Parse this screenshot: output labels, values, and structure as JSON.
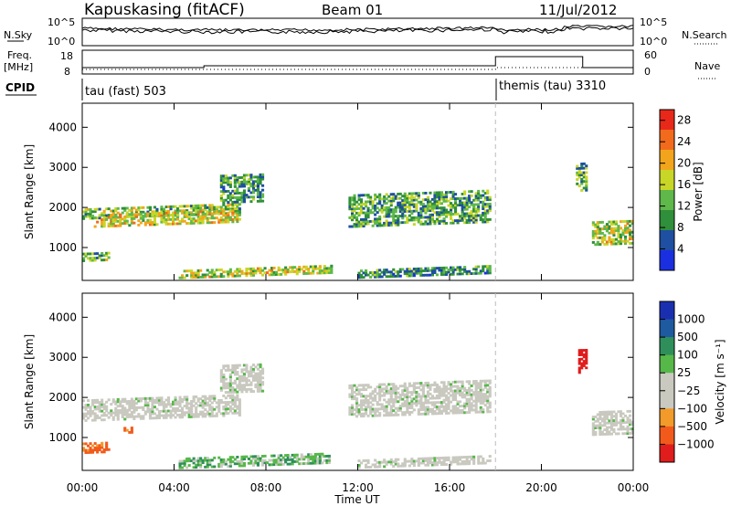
{
  "header": {
    "station": "Kapuskasing (fitACF)",
    "beam": "Beam 01",
    "date": "11/Jul/2012"
  },
  "top_panels": {
    "nsky_label": "N.Sky",
    "nsky_ticks": [
      "10^5",
      "10^0"
    ],
    "nsearch_label": "N.Search",
    "nsearch_ticks": [
      "10^5",
      "10^0"
    ],
    "freq_label": "Freq.",
    "freq_unit": "[MHz]",
    "freq_ticks": [
      "18",
      "8"
    ],
    "nave_label": "Nave",
    "nave_ticks": [
      "60",
      "0"
    ],
    "cpid_label": "CPID",
    "cpid_segments": [
      {
        "start_hour": 0,
        "text": "tau (fast) 503"
      },
      {
        "start_hour": 18,
        "text": "themis (tau) 3310"
      }
    ]
  },
  "colors": {
    "power": [
      "#1a2fe0",
      "#1e4fa0",
      "#2f8f3a",
      "#5fb84a",
      "#c8d628",
      "#f2a51c",
      "#f26a1c",
      "#e8281a"
    ],
    "velocity": [
      "#e01c1c",
      "#f25a1c",
      "#f29a2a",
      "#c9c9c0",
      "#c9c9c0",
      "#57b84a",
      "#2f8f5a",
      "#1e5aa0",
      "#1a2fb0"
    ],
    "grey": "#c9c9c0"
  },
  "chart_data": [
    {
      "type": "heatmap",
      "title": "Power",
      "ylabel": "Slant Range [km]",
      "xlabel": "Time UT",
      "x_ticks": [
        "00:00",
        "04:00",
        "08:00",
        "12:00",
        "16:00",
        "20:00",
        "00:00"
      ],
      "x_range_hours": [
        0,
        24
      ],
      "y_ticks": [
        1000,
        2000,
        3000,
        4000
      ],
      "y_range_km": [
        180,
        4600
      ],
      "colorbar_label": "Power [dB]",
      "colorbar_ticks": [
        4,
        8,
        12,
        16,
        20,
        24,
        28
      ],
      "colorbar_range": [
        0,
        30
      ],
      "bands": [
        {
          "t0": 0.0,
          "t1": 6.8,
          "r0": 1700,
          "r1": 1950,
          "level": 0.45
        },
        {
          "t0": 0.5,
          "t1": 6.8,
          "r0": 1500,
          "r1": 1800,
          "level": 0.6
        },
        {
          "t0": 0.0,
          "t1": 1.2,
          "r0": 650,
          "r1": 850,
          "level": 0.4
        },
        {
          "t0": 4.2,
          "t1": 10.8,
          "r0": 220,
          "r1": 400,
          "level": 0.55
        },
        {
          "t0": 6.0,
          "t1": 7.8,
          "r0": 2100,
          "r1": 2800,
          "level": 0.3
        },
        {
          "t0": 11.6,
          "t1": 17.8,
          "r0": 1500,
          "r1": 2300,
          "level": 0.35
        },
        {
          "t0": 12.0,
          "t1": 17.8,
          "r0": 230,
          "r1": 400,
          "level": 0.3
        },
        {
          "t0": 22.2,
          "t1": 24.0,
          "r0": 1050,
          "r1": 1650,
          "level": 0.55
        },
        {
          "t0": 21.5,
          "t1": 22.0,
          "r0": 2400,
          "r1": 3100,
          "level": 0.35
        }
      ]
    },
    {
      "type": "heatmap",
      "title": "Velocity",
      "ylabel": "Slant Range [km]",
      "xlabel": "Time UT",
      "x_ticks": [
        "00:00",
        "04:00",
        "08:00",
        "12:00",
        "16:00",
        "20:00",
        "00:00"
      ],
      "x_range_hours": [
        0,
        24
      ],
      "y_ticks": [
        1000,
        2000,
        3000,
        4000
      ],
      "y_range_km": [
        180,
        4600
      ],
      "colorbar_label": "Velocity [m s⁻¹]",
      "colorbar_ticks": [
        "1000",
        "500",
        "100",
        "25",
        "−25",
        "−100",
        "−500",
        "−1000"
      ],
      "bands": [
        {
          "t0": 0.0,
          "t1": 6.8,
          "r0": 1400,
          "r1": 1950,
          "vel": 0
        },
        {
          "t0": 0.0,
          "t1": 1.2,
          "r0": 600,
          "r1": 850,
          "vel": -400
        },
        {
          "t0": 1.8,
          "t1": 2.2,
          "r0": 1100,
          "r1": 1250,
          "vel": -400
        },
        {
          "t0": 4.2,
          "t1": 10.8,
          "r0": 220,
          "r1": 450,
          "vel": 150
        },
        {
          "t0": 6.0,
          "t1": 7.8,
          "r0": 2100,
          "r1": 2800,
          "vel": 0
        },
        {
          "t0": 11.6,
          "t1": 17.8,
          "r0": 1500,
          "r1": 2300,
          "vel": 0
        },
        {
          "t0": 12.0,
          "t1": 17.8,
          "r0": 230,
          "r1": 400,
          "vel": 50
        },
        {
          "t0": 22.2,
          "t1": 24.0,
          "r0": 1050,
          "r1": 1650,
          "vel": 0
        },
        {
          "t0": 21.6,
          "t1": 22.0,
          "r0": 2600,
          "r1": 3200,
          "vel": -900
        }
      ]
    }
  ]
}
